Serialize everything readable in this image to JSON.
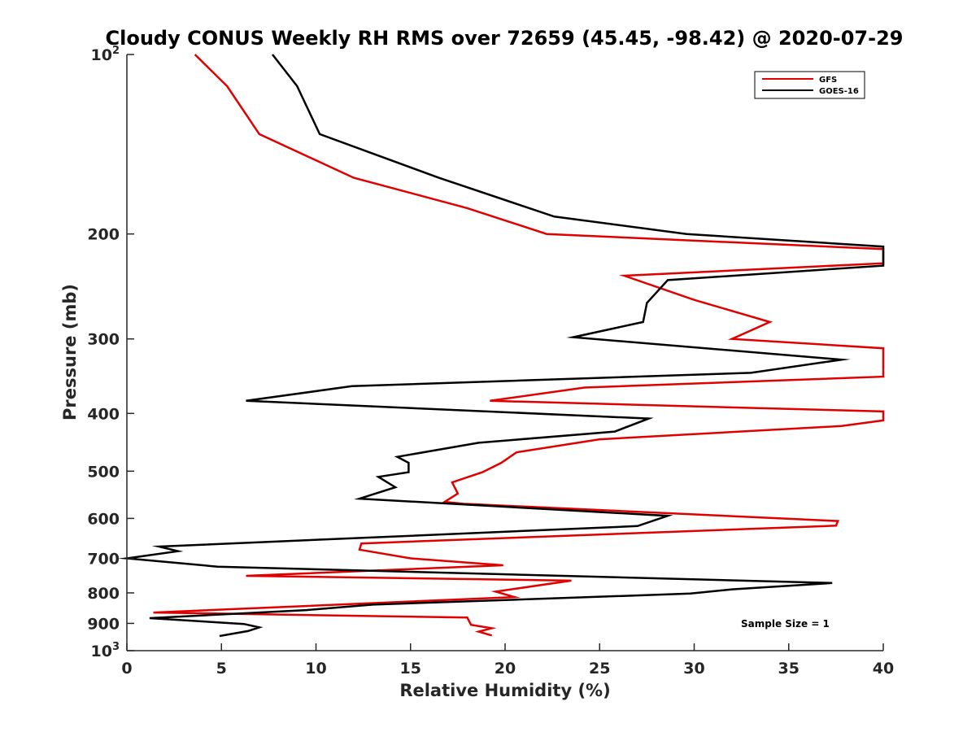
{
  "chart_data": {
    "type": "line",
    "title": "Cloudy CONUS Weekly RH RMS over 72659 (45.45, -98.42) @ 2020-07-29",
    "xlabel": "Relative Humidity (%)",
    "ylabel": "Pressure (mb)",
    "xlim": [
      0,
      40
    ],
    "ylim": [
      100,
      1000
    ],
    "y_scale": "log",
    "y_reversed": true,
    "grid": false,
    "legend_position": "top-right",
    "x_ticks": [
      "0",
      "5",
      "10",
      "15",
      "20",
      "25",
      "30",
      "35",
      "40"
    ],
    "y_ticks": [
      {
        "value": 100,
        "base": "10",
        "sup": "2"
      },
      {
        "value": 200,
        "label": "200"
      },
      {
        "value": 300,
        "label": "300"
      },
      {
        "value": 400,
        "label": "400"
      },
      {
        "value": 500,
        "label": "500"
      },
      {
        "value": 600,
        "label": "600"
      },
      {
        "value": 700,
        "label": "700"
      },
      {
        "value": 800,
        "label": "800"
      },
      {
        "value": 900,
        "label": "900"
      },
      {
        "value": 1000,
        "base": "10",
        "sup": "3"
      }
    ],
    "annotation": "Sample Size = 1",
    "series": [
      {
        "name": "GFS",
        "color": "#e00000",
        "points": [
          [
            3.6,
            100
          ],
          [
            5.3,
            113
          ],
          [
            7.0,
            136
          ],
          [
            12.0,
            161
          ],
          [
            18.0,
            181
          ],
          [
            22.2,
            200
          ],
          [
            40,
            212
          ],
          [
            40,
            224
          ],
          [
            26.3,
            235
          ],
          [
            30.0,
            258
          ],
          [
            34.0,
            281
          ],
          [
            32.0,
            300
          ],
          [
            40,
            311
          ],
          [
            40,
            347
          ],
          [
            24.2,
            362
          ],
          [
            19.2,
            381
          ],
          [
            40,
            397
          ],
          [
            40,
            411
          ],
          [
            37.8,
            420
          ],
          [
            25.0,
            442
          ],
          [
            20.6,
            465
          ],
          [
            19.8,
            484
          ],
          [
            18.8,
            502
          ],
          [
            17.2,
            522
          ],
          [
            17.5,
            545
          ],
          [
            16.8,
            563
          ],
          [
            17.8,
            567
          ],
          [
            37.6,
            606
          ],
          [
            37.5,
            617
          ],
          [
            12.4,
            661
          ],
          [
            12.3,
            677
          ],
          [
            15.0,
            700
          ],
          [
            19.9,
            719
          ],
          [
            6.3,
            749
          ],
          [
            23.5,
            763
          ],
          [
            19.5,
            796
          ],
          [
            20.5,
            813
          ],
          [
            1.4,
            863
          ],
          [
            18.0,
            880
          ],
          [
            18.2,
            905
          ],
          [
            19.3,
            917
          ],
          [
            18.6,
            929
          ],
          [
            19.3,
            943
          ]
        ]
      },
      {
        "name": "GOES-16",
        "color": "#000000",
        "points": [
          [
            7.7,
            100
          ],
          [
            9.0,
            113
          ],
          [
            10.2,
            136
          ],
          [
            16.5,
            161
          ],
          [
            22.6,
            187
          ],
          [
            29.6,
            200
          ],
          [
            40,
            210
          ],
          [
            40,
            226
          ],
          [
            28.6,
            239
          ],
          [
            27.5,
            261
          ],
          [
            27.3,
            281
          ],
          [
            23.6,
            298
          ],
          [
            37.8,
            325
          ],
          [
            33.0,
            342
          ],
          [
            11.9,
            360
          ],
          [
            6.3,
            381
          ],
          [
            27.6,
            408
          ],
          [
            25.8,
            429
          ],
          [
            18.6,
            448
          ],
          [
            14.3,
            473
          ],
          [
            14.9,
            484
          ],
          [
            14.9,
            502
          ],
          [
            13.3,
            511
          ],
          [
            14.2,
            532
          ],
          [
            12.3,
            556
          ],
          [
            28.6,
            594
          ],
          [
            27.0,
            618
          ],
          [
            1.7,
            669
          ],
          [
            2.7,
            681
          ],
          [
            0,
            700
          ],
          [
            4.8,
            723
          ],
          [
            37.3,
            770
          ],
          [
            32.0,
            789
          ],
          [
            29.8,
            802
          ],
          [
            13.0,
            837
          ],
          [
            9.5,
            855
          ],
          [
            1.2,
            882
          ],
          [
            6.2,
            902
          ],
          [
            7.0,
            914
          ],
          [
            6.4,
            927
          ],
          [
            4.9,
            945
          ]
        ]
      }
    ]
  }
}
